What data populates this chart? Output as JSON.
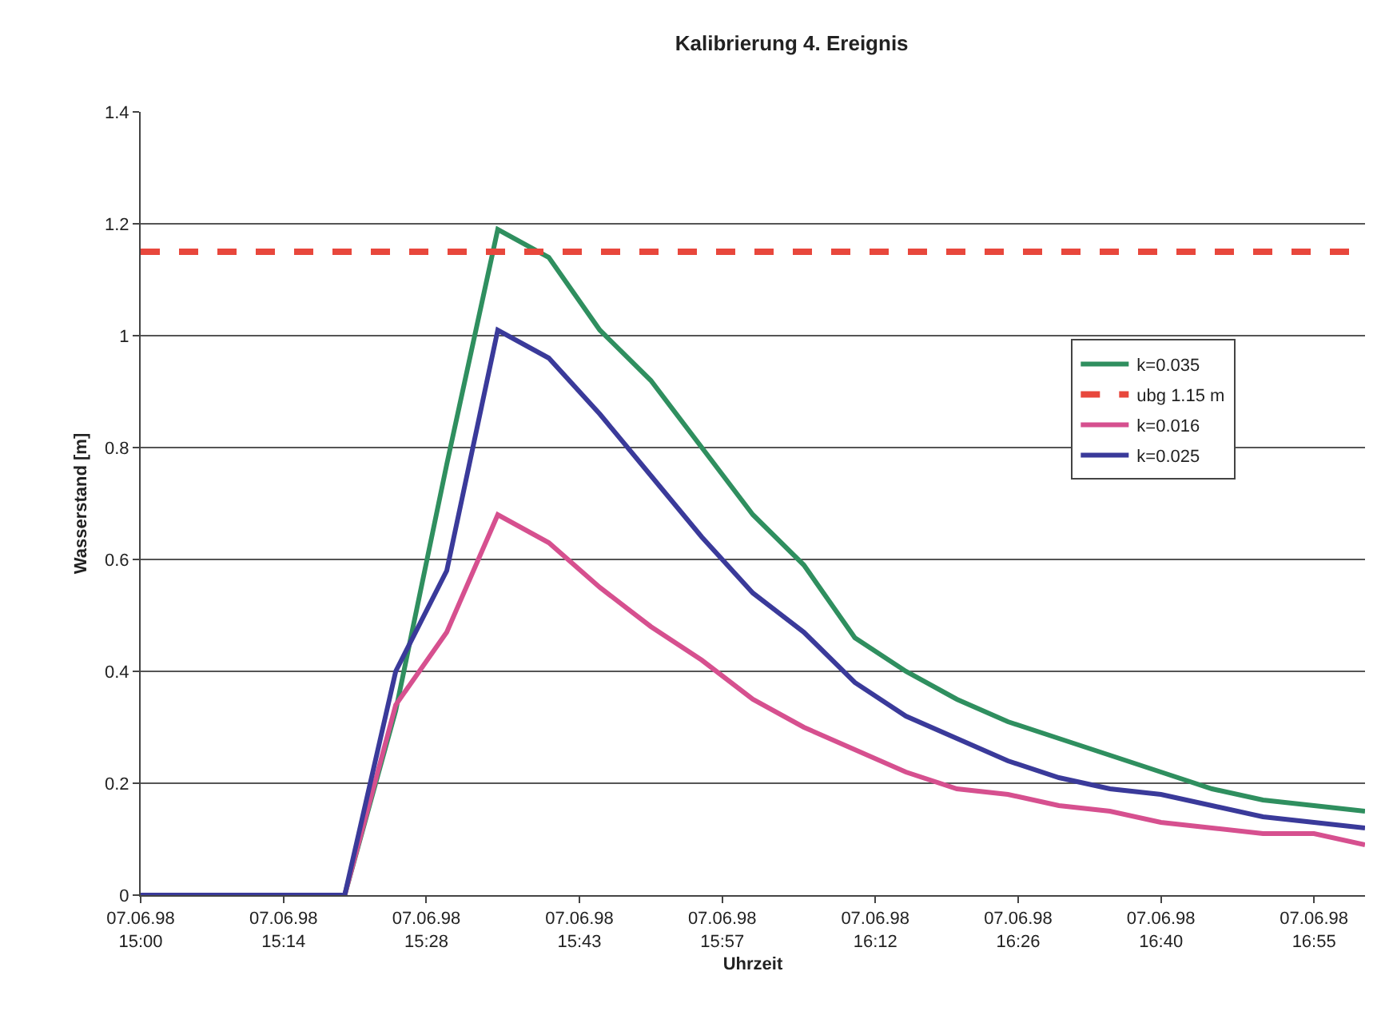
{
  "chart_data": {
    "type": "line",
    "title": "Kalibrierung 4. Ereignis",
    "xlabel": "Uhrzeit",
    "ylabel": "Wasserstand [m]",
    "x": [
      "1998-06-07T15:00",
      "1998-06-07T15:05",
      "1998-06-07T15:10",
      "1998-06-07T15:15",
      "1998-06-07T15:20",
      "1998-06-07T15:25",
      "1998-06-07T15:30",
      "1998-06-07T15:35",
      "1998-06-07T15:40",
      "1998-06-07T15:45",
      "1998-06-07T15:50",
      "1998-06-07T15:55",
      "1998-06-07T16:00",
      "1998-06-07T16:05",
      "1998-06-07T16:10",
      "1998-06-07T16:15",
      "1998-06-07T16:20",
      "1998-06-07T16:25",
      "1998-06-07T16:30",
      "1998-06-07T16:35",
      "1998-06-07T16:40",
      "1998-06-07T16:45",
      "1998-06-07T16:50",
      "1998-06-07T16:55",
      "1998-06-07T17:00"
    ],
    "series": [
      {
        "name": "k=0.035",
        "color": "#2f8f5f",
        "values": [
          null,
          null,
          null,
          0,
          0,
          0.33,
          0.77,
          1.19,
          1.14,
          1.01,
          0.92,
          0.8,
          0.68,
          0.59,
          0.46,
          0.4,
          0.35,
          0.31,
          0.28,
          0.25,
          0.22,
          0.19,
          0.17,
          0.16,
          0.15
        ]
      },
      {
        "name": "ubg 1.15 m",
        "color": "#e8473c",
        "line_style": "dashed",
        "x": [
          "1998-06-07T15:00",
          "1998-06-07T17:00"
        ],
        "values": [
          1.15,
          1.15
        ]
      },
      {
        "name": "k=0.016",
        "color": "#d6508f",
        "values": [
          null,
          null,
          null,
          0,
          0,
          0.34,
          0.47,
          0.68,
          0.63,
          0.55,
          0.48,
          0.42,
          0.35,
          0.3,
          0.26,
          0.22,
          0.19,
          0.18,
          0.16,
          0.15,
          0.13,
          0.12,
          0.11,
          0.11,
          0.09
        ]
      },
      {
        "name": "k=0.025",
        "color": "#3a3a9a",
        "values": [
          0,
          0,
          0,
          0,
          0,
          0.4,
          0.58,
          1.01,
          0.96,
          0.86,
          0.75,
          0.64,
          0.54,
          0.47,
          0.38,
          0.32,
          0.28,
          0.24,
          0.21,
          0.19,
          0.18,
          0.16,
          0.14,
          0.13,
          0.12
        ]
      }
    ],
    "xlim": [
      "1998-06-07T15:00",
      "1998-06-07T17:00"
    ],
    "xticks": [
      {
        "value": "1998-06-07T15:00",
        "label": "07.06.98\n15:00"
      },
      {
        "value": "1998-06-07T15:14",
        "label": "07.06.98\n15:14"
      },
      {
        "value": "1998-06-07T15:28",
        "label": "07.06.98\n15:28"
      },
      {
        "value": "1998-06-07T15:43",
        "label": "07.06.98\n15:43"
      },
      {
        "value": "1998-06-07T15:57",
        "label": "07.06.98\n15:57"
      },
      {
        "value": "1998-06-07T16:12",
        "label": "07.06.98\n16:12"
      },
      {
        "value": "1998-06-07T16:26",
        "label": "07.06.98\n16:26"
      },
      {
        "value": "1998-06-07T16:40",
        "label": "07.06.98\n16:40"
      },
      {
        "value": "1998-06-07T16:55",
        "label": "07.06.98\n16:55"
      }
    ],
    "ylim": [
      0,
      1.4
    ],
    "yticks": [
      0,
      0.2,
      0.4,
      0.6,
      0.8,
      1,
      1.2,
      1.4
    ],
    "grid": "y",
    "legend": "right",
    "line_style": "solid",
    "marker": "none"
  }
}
